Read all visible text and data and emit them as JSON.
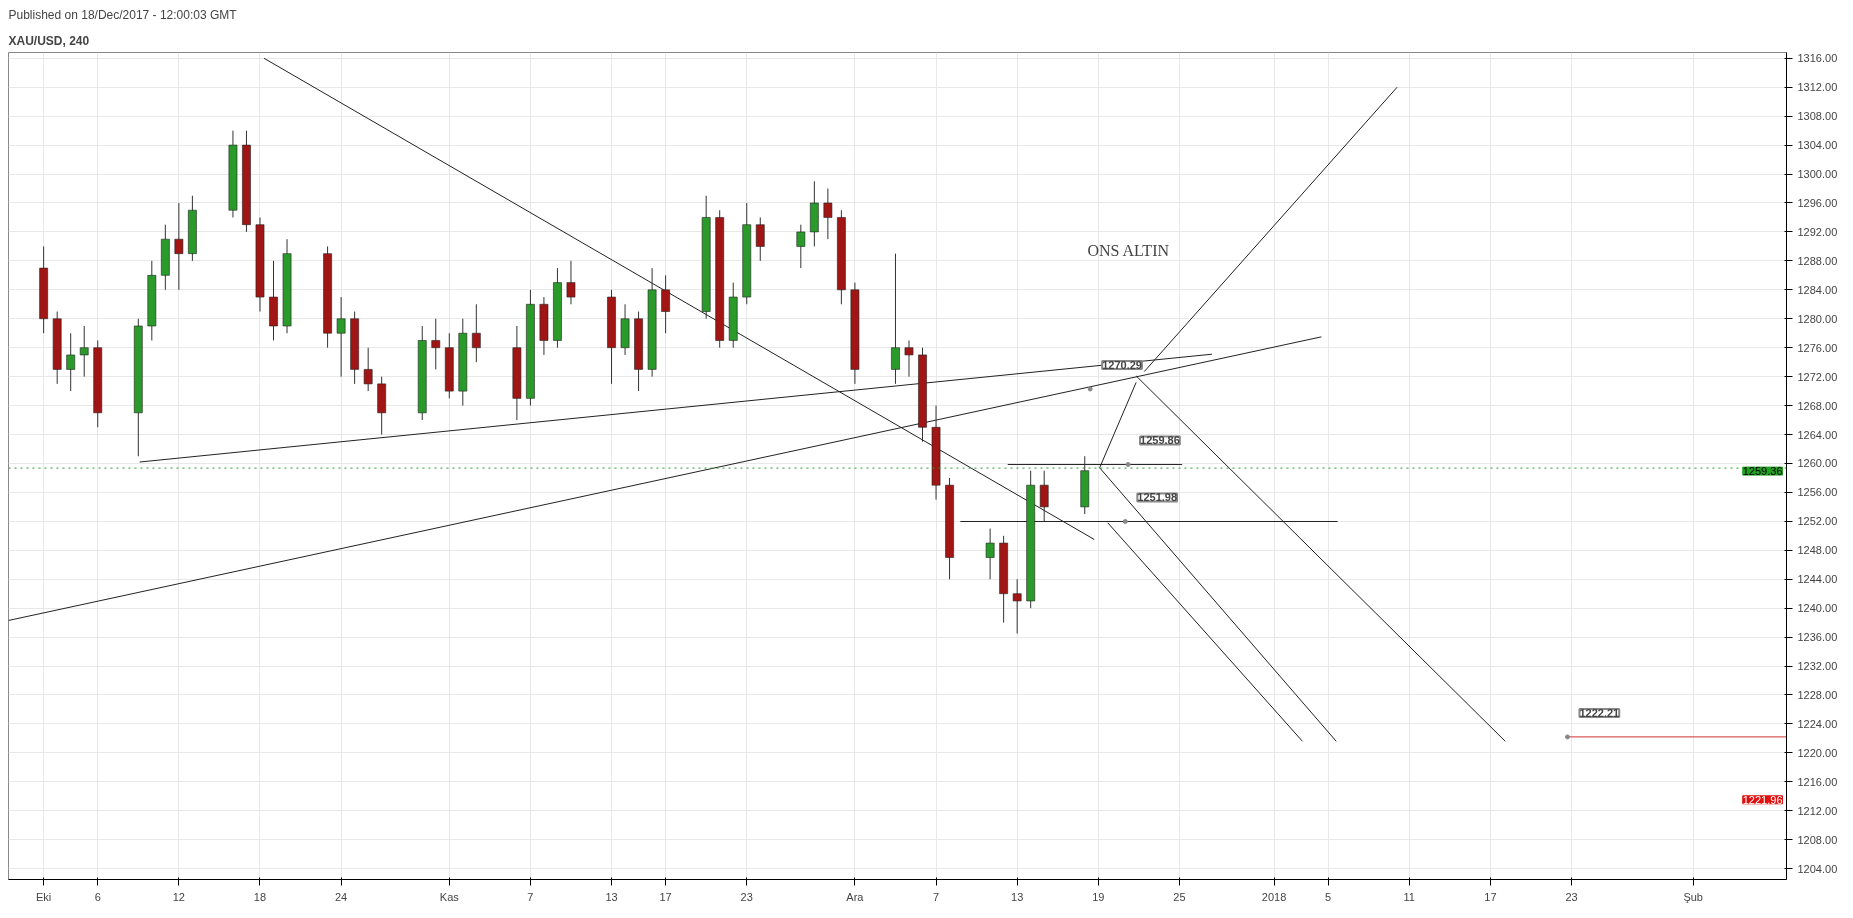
{
  "chart_data": {
    "type": "candlestick",
    "title": "XAU/USD, 240",
    "subtitle": "Published on 18/Dec/2017 - 12:00:03 GMT",
    "x": [
      "2017-10-02",
      "2017-10-03",
      "2017-10-04",
      "2017-10-05",
      "2017-10-06",
      "2017-10-09",
      "2017-10-10",
      "2017-10-11",
      "2017-10-12",
      "2017-10-13",
      "2017-10-16",
      "2017-10-17",
      "2017-10-18",
      "2017-10-19",
      "2017-10-20",
      "2017-10-23",
      "2017-10-24",
      "2017-10-25",
      "2017-10-26",
      "2017-10-27",
      "2017-10-30",
      "2017-10-31",
      "2017-11-01",
      "2017-11-02",
      "2017-11-03",
      "2017-11-06",
      "2017-11-07",
      "2017-11-08",
      "2017-11-09",
      "2017-11-10",
      "2017-11-13",
      "2017-11-14",
      "2017-11-15",
      "2017-11-16",
      "2017-11-17",
      "2017-11-20",
      "2017-11-21",
      "2017-11-22",
      "2017-11-23",
      "2017-11-24",
      "2017-11-27",
      "2017-11-28",
      "2017-11-29",
      "2017-11-30",
      "2017-12-01",
      "2017-12-04",
      "2017-12-05",
      "2017-12-06",
      "2017-12-07",
      "2017-12-08",
      "2017-12-11",
      "2017-12-12",
      "2017-12-13",
      "2017-12-14",
      "2017-12-15",
      "2017-12-18"
    ],
    "ohlc": [
      [
        1287,
        1290,
        1278,
        1280
      ],
      [
        1280,
        1281,
        1271,
        1273
      ],
      [
        1273,
        1278,
        1270,
        1275
      ],
      [
        1275,
        1279,
        1272,
        1276
      ],
      [
        1276,
        1277,
        1265,
        1267
      ],
      [
        1267,
        1280,
        1261,
        1279
      ],
      [
        1279,
        1288,
        1277,
        1286
      ],
      [
        1286,
        1293,
        1284,
        1291
      ],
      [
        1291,
        1296,
        1284,
        1289
      ],
      [
        1289,
        1297,
        1288,
        1295
      ],
      [
        1295,
        1306,
        1294,
        1304
      ],
      [
        1304,
        1306,
        1292,
        1293
      ],
      [
        1293,
        1294,
        1281,
        1283
      ],
      [
        1283,
        1288,
        1277,
        1279
      ],
      [
        1279,
        1291,
        1278,
        1289
      ],
      [
        1289,
        1290,
        1276,
        1278
      ],
      [
        1278,
        1283,
        1272,
        1280
      ],
      [
        1280,
        1281,
        1271,
        1273
      ],
      [
        1273,
        1276,
        1270,
        1271
      ],
      [
        1271,
        1272,
        1264,
        1267
      ],
      [
        1267,
        1279,
        1266,
        1277
      ],
      [
        1277,
        1280,
        1273,
        1276
      ],
      [
        1276,
        1278,
        1269,
        1270
      ],
      [
        1270,
        1280,
        1268,
        1278
      ],
      [
        1278,
        1282,
        1274,
        1276
      ],
      [
        1276,
        1279,
        1266,
        1269
      ],
      [
        1269,
        1284,
        1268,
        1282
      ],
      [
        1282,
        1283,
        1275,
        1277
      ],
      [
        1277,
        1287,
        1276,
        1285
      ],
      [
        1285,
        1288,
        1282,
        1283
      ],
      [
        1283,
        1284,
        1271,
        1276
      ],
      [
        1276,
        1282,
        1275,
        1280
      ],
      [
        1280,
        1281,
        1270,
        1273
      ],
      [
        1273,
        1287,
        1272,
        1284
      ],
      [
        1284,
        1286,
        1278,
        1281
      ],
      [
        1281,
        1297,
        1280,
        1294
      ],
      [
        1294,
        1295,
        1276,
        1277
      ],
      [
        1277,
        1285,
        1276,
        1283
      ],
      [
        1283,
        1296,
        1282,
        1293
      ],
      [
        1293,
        1294,
        1288,
        1290
      ],
      [
        1290,
        1293,
        1287,
        1292
      ],
      [
        1292,
        1299,
        1290,
        1296
      ],
      [
        1296,
        1298,
        1291,
        1294
      ],
      [
        1294,
        1295,
        1282,
        1284
      ],
      [
        1284,
        1285,
        1271,
        1273
      ],
      [
        1273,
        1289,
        1271,
        1276
      ],
      [
        1276,
        1277,
        1272,
        1275
      ],
      [
        1275,
        1276,
        1263,
        1265
      ],
      [
        1265,
        1268,
        1255,
        1257
      ],
      [
        1257,
        1258,
        1244,
        1247
      ],
      [
        1247,
        1251,
        1244,
        1249
      ],
      [
        1249,
        1250,
        1238,
        1242
      ],
      [
        1242,
        1244,
        1236.5,
        1241
      ],
      [
        1241,
        1259,
        1240,
        1257
      ],
      [
        1257,
        1259,
        1252,
        1254
      ],
      [
        1254,
        1261,
        1253,
        1259
      ]
    ],
    "series": [
      {
        "type": "line",
        "color": "#222222",
        "x": [
          "2017-10-18T07:12",
          "2017-12-18T16:48"
        ],
        "values": [
          1316,
          1249.5
        ]
      },
      {
        "type": "line",
        "color": "#222222",
        "x": [
          "2017-10-09T02:24",
          "2017-12-27T09:36"
        ],
        "values": [
          1260.2,
          1275.1
        ]
      },
      {
        "type": "line",
        "color": "#222222",
        "x": [
          "2017-09-29T09:36",
          "2018-01-04T12:00"
        ],
        "values": [
          1238.3,
          1277.5
        ]
      },
      {
        "type": "line",
        "color": "#222222",
        "x": [
          "2017-12-12T07:12",
          "2017-12-25T04:48"
        ],
        "values": [
          1259.86,
          1259.86
        ]
      },
      {
        "type": "line",
        "color": "#222222",
        "x": [
          "2017-12-08T19:12",
          "2018-01-05T16:48"
        ],
        "values": [
          1251.98,
          1251.98
        ]
      },
      {
        "type": "line",
        "color": "#222222",
        "x": [
          "2017-12-19T02:24",
          "2017-12-21T19:12"
        ],
        "values": [
          1259.4,
          1271.2
        ]
      },
      {
        "type": "line",
        "color": "#222222",
        "x": [
          "2017-12-21T19:12",
          "2018-01-18T02:24"
        ],
        "values": [
          1272.1,
          1221.6
        ]
      },
      {
        "type": "line",
        "color": "#222222",
        "x": [
          "2017-12-22T09:36",
          "2018-01-10T02:24"
        ],
        "values": [
          1272.7,
          1312.0
        ]
      },
      {
        "type": "line",
        "color": "#222222",
        "x": [
          "2017-12-19T02:24",
          "2018-01-05T14:24"
        ],
        "values": [
          1259.4,
          1221.6
        ]
      },
      {
        "type": "line",
        "color": "#222222",
        "x": [
          "2017-12-19T16:48",
          "2018-01-03T02:24"
        ],
        "values": [
          1251.8,
          1221.6
        ]
      },
      {
        "type": "line",
        "color": "#d03030",
        "x": [
          "2018-01-22T16:48",
          "2018-02-07T21:36"
        ],
        "values": [
          1222.21,
          1222.21
        ]
      }
    ],
    "ref_lines": [
      {
        "axis": "y",
        "value": 1259.36,
        "label": "1259.36",
        "color": "#22a022",
        "line_style": "dotted"
      }
    ],
    "annotations": [
      "ONS ALTIN",
      {
        "text": "1270.29",
        "x": "2017-12-18T09:36",
        "y": 1270.29
      },
      {
        "text": "1259.86",
        "x": "2017-12-21T04:48",
        "y": 1259.86
      },
      {
        "text": "1251.98",
        "x": "2017-12-21",
        "y": 1251.98
      },
      {
        "text": "1222.21",
        "x": "2018-01-22T16:48",
        "y": 1222.21
      },
      "1221.96"
    ],
    "xlim": [
      "2017-09-29T09:36",
      "2018-02-07T21:36"
    ],
    "ylim": [
      1202.5,
      1316.8
    ],
    "xticks": [
      {
        "value": "2017-10-02",
        "label": "Eki"
      },
      {
        "value": "2017-10-06",
        "label": "6"
      },
      {
        "value": "2017-10-12",
        "label": "12"
      },
      {
        "value": "2017-10-18",
        "label": "18"
      },
      {
        "value": "2017-10-24",
        "label": "24"
      },
      {
        "value": "2017-11-01",
        "label": "Kas"
      },
      {
        "value": "2017-11-07",
        "label": "7"
      },
      {
        "value": "2017-11-13",
        "label": "13"
      },
      {
        "value": "2017-11-17",
        "label": "17"
      },
      {
        "value": "2017-11-23",
        "label": "23"
      },
      {
        "value": "2017-12-01",
        "label": "Ara"
      },
      {
        "value": "2017-12-07",
        "label": "7"
      },
      {
        "value": "2017-12-13",
        "label": "13"
      },
      {
        "value": "2017-12-19",
        "label": "19"
      },
      {
        "value": "2017-12-25",
        "label": "25"
      },
      {
        "value": "2018-01-01",
        "label": "2018"
      },
      {
        "value": "2018-01-05",
        "label": "5"
      },
      {
        "value": "2018-01-11",
        "label": "11"
      },
      {
        "value": "2018-01-17",
        "label": "17"
      },
      {
        "value": "2018-01-23",
        "label": "23"
      },
      {
        "value": "2018-02-01",
        "label": "Şub"
      }
    ],
    "yticks": [
      {
        "value": 1204,
        "label": "1204.00"
      },
      {
        "value": 1208,
        "label": "1208.00"
      },
      {
        "value": 1212,
        "label": "1212.00"
      },
      {
        "value": 1216,
        "label": "1216.00"
      },
      {
        "value": 1220,
        "label": "1220.00"
      },
      {
        "value": 1224,
        "label": "1224.00"
      },
      {
        "value": 1228,
        "label": "1228.00"
      },
      {
        "value": 1232,
        "label": "1232.00"
      },
      {
        "value": 1236,
        "label": "1236.00"
      },
      {
        "value": 1240,
        "label": "1240.00"
      },
      {
        "value": 1244,
        "label": "1244.00"
      },
      {
        "value": 1248,
        "label": "1248.00"
      },
      {
        "value": 1252,
        "label": "1252.00"
      },
      {
        "value": 1256,
        "label": "1256.00"
      },
      {
        "value": 1260,
        "label": "1260.00"
      },
      {
        "value": 1264,
        "label": "1264.00"
      },
      {
        "value": 1268,
        "label": "1268.00"
      },
      {
        "value": 1272,
        "label": "1272.00"
      },
      {
        "value": 1276,
        "label": "1276.00"
      },
      {
        "value": 1280,
        "label": "1280.00"
      },
      {
        "value": 1284,
        "label": "1284.00"
      },
      {
        "value": 1288,
        "label": "1288.00"
      },
      {
        "value": 1292,
        "label": "1292.00"
      },
      {
        "value": 1296,
        "label": "1296.00"
      },
      {
        "value": 1300,
        "label": "1300.00"
      },
      {
        "value": 1304,
        "label": "1304.00"
      },
      {
        "value": 1308,
        "label": "1308.00"
      },
      {
        "value": 1312,
        "label": "1312.00"
      },
      {
        "value": 1316,
        "label": "1316.00"
      }
    ],
    "grid": true
  }
}
